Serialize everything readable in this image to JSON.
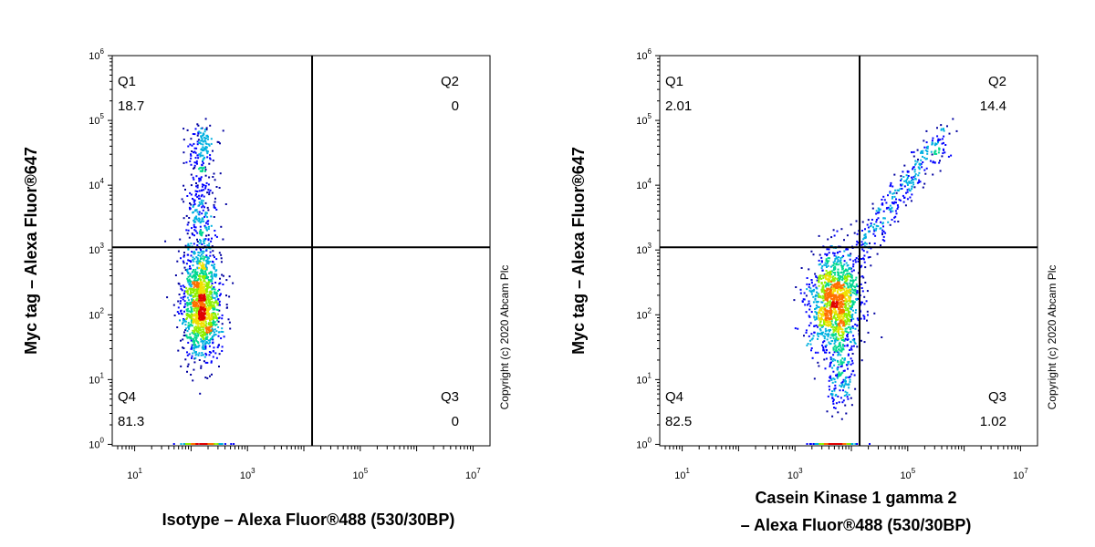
{
  "chart_data": [
    {
      "type": "scatter",
      "subtype": "flow-cytometry-density-dot-plot",
      "xlabel": "Isotype – Alexa Fluor®488 (530/30BP)",
      "xlabel_lines": [
        "Isotype – Alexa Fluor®488 (530/30BP)"
      ],
      "ylabel": "Myc tag – Alexa Fluor®647",
      "x_scale": "log",
      "y_scale": "log",
      "xlim": [
        4,
        20000000
      ],
      "ylim": [
        0.95,
        1000000
      ],
      "x_ticks": [
        {
          "base": "10",
          "exp": "1",
          "value": 10
        },
        {
          "base": "10",
          "exp": "3",
          "value": 1000
        },
        {
          "base": "10",
          "exp": "5",
          "value": 100000
        },
        {
          "base": "10",
          "exp": "7",
          "value": 10000000
        }
      ],
      "y_ticks": [
        {
          "base": "10",
          "exp": "0",
          "value": 1
        },
        {
          "base": "10",
          "exp": "1",
          "value": 10
        },
        {
          "base": "10",
          "exp": "2",
          "value": 100
        },
        {
          "base": "10",
          "exp": "3",
          "value": 1000
        },
        {
          "base": "10",
          "exp": "4",
          "value": 10000
        },
        {
          "base": "10",
          "exp": "5",
          "value": 100000
        },
        {
          "base": "10",
          "exp": "6",
          "value": 1000000
        }
      ],
      "gate": {
        "x": 14000,
        "y": 1100
      },
      "quadrants": [
        {
          "name": "Q1",
          "value": "18.7",
          "position": "top-left"
        },
        {
          "name": "Q2",
          "value": "0",
          "position": "top-right"
        },
        {
          "name": "Q3",
          "value": "0",
          "position": "bottom-right"
        },
        {
          "name": "Q4",
          "value": "81.3",
          "position": "bottom-left"
        }
      ],
      "populations": [
        {
          "n": 1300,
          "x_center": 150,
          "x_spread": 0.17,
          "y_center": 150,
          "y_spread": 0.42
        },
        {
          "n": 260,
          "x_center": 140,
          "x_spread": 0.15,
          "y_center": 3500,
          "y_spread": 0.45
        },
        {
          "n": 120,
          "x_center": 150,
          "x_spread": 0.12,
          "y_center": 40000,
          "y_spread": 0.18
        }
      ],
      "density_colors": [
        "#0000a0",
        "#0000ff",
        "#00b0e0",
        "#00d890",
        "#90f000",
        "#f0e000",
        "#ff7000",
        "#e00000"
      ],
      "copyright": "Copyright (c) 2020 Abcam Plc"
    },
    {
      "type": "scatter",
      "subtype": "flow-cytometry-density-dot-plot",
      "xlabel": "Casein Kinase 1 gamma 2 – Alexa Fluor®488 (530/30BP)",
      "xlabel_lines": [
        "Casein Kinase 1 gamma 2",
        "– Alexa Fluor®488 (530/30BP)"
      ],
      "ylabel": "Myc tag – Alexa Fluor®647",
      "x_scale": "log",
      "y_scale": "log",
      "xlim": [
        4,
        20000000
      ],
      "ylim": [
        0.95,
        1000000
      ],
      "x_ticks": [
        {
          "base": "10",
          "exp": "1",
          "value": 10
        },
        {
          "base": "10",
          "exp": "3",
          "value": 1000
        },
        {
          "base": "10",
          "exp": "5",
          "value": 100000
        },
        {
          "base": "10",
          "exp": "7",
          "value": 10000000
        }
      ],
      "y_ticks": [
        {
          "base": "10",
          "exp": "0",
          "value": 1
        },
        {
          "base": "10",
          "exp": "1",
          "value": 10
        },
        {
          "base": "10",
          "exp": "2",
          "value": 100
        },
        {
          "base": "10",
          "exp": "3",
          "value": 1000
        },
        {
          "base": "10",
          "exp": "4",
          "value": 10000
        },
        {
          "base": "10",
          "exp": "5",
          "value": 100000
        },
        {
          "base": "10",
          "exp": "6",
          "value": 1000000
        }
      ],
      "gate": {
        "x": 14000,
        "y": 1100
      },
      "quadrants": [
        {
          "name": "Q1",
          "value": "2.01",
          "position": "top-left"
        },
        {
          "name": "Q2",
          "value": "14.4",
          "position": "top-right"
        },
        {
          "name": "Q3",
          "value": "1.02",
          "position": "bottom-right"
        },
        {
          "name": "Q4",
          "value": "82.5",
          "position": "bottom-left"
        }
      ],
      "populations": [
        {
          "n": 1300,
          "x_center": 5000,
          "x_spread": 0.22,
          "y_center": 160,
          "y_spread": 0.4
        },
        {
          "n": 160,
          "x_center": 6000,
          "x_spread": 0.12,
          "y_center": 12,
          "y_spread": 0.28
        }
      ],
      "diagonal_population": {
        "n": 340,
        "x_from": 10000,
        "x_to": 450000,
        "y_from": 700,
        "y_to": 70000,
        "jitter": 0.12
      },
      "density_colors": [
        "#0000a0",
        "#0000ff",
        "#00b0e0",
        "#00d890",
        "#90f000",
        "#f0e000",
        "#ff7000",
        "#e00000"
      ],
      "copyright": "Copyright (c) 2020 Abcam Plc"
    }
  ]
}
